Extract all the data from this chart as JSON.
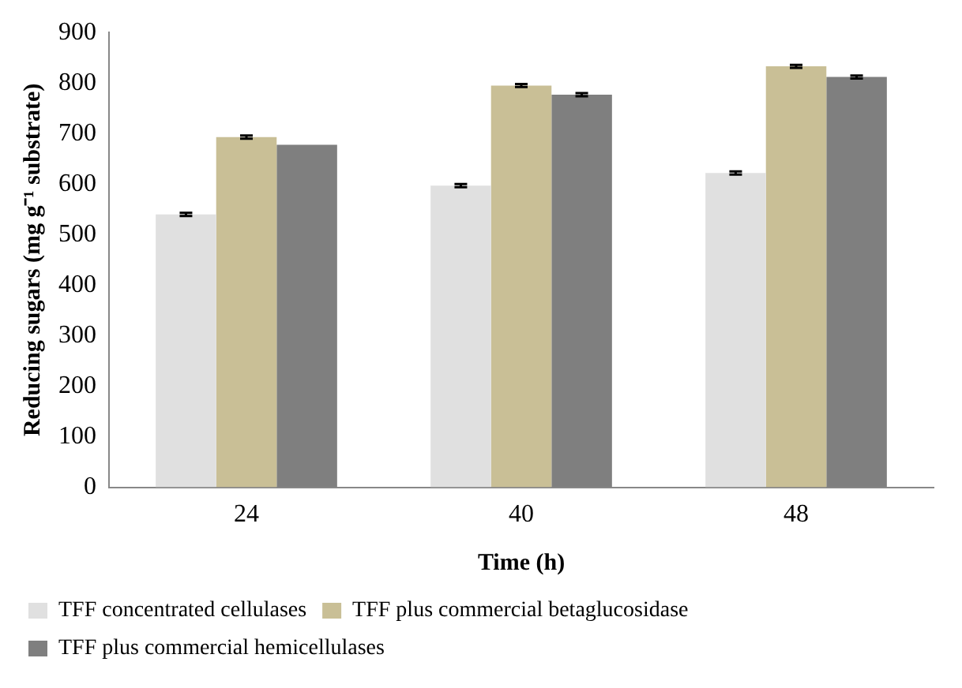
{
  "chart_data": {
    "type": "bar",
    "xlabel": "Time (h)",
    "ylabel": "Reducing sugars (mg g⁻¹ substrate)",
    "categories": [
      "24",
      "40",
      "48"
    ],
    "series": [
      {
        "name": "TFF concentrated cellulases",
        "color": "#e0e0e0",
        "values": [
          540,
          597,
          622
        ],
        "errors": [
          3,
          3,
          3
        ]
      },
      {
        "name": "TFF plus commercial betaglucosidase",
        "color": "#c9bf96",
        "values": [
          693,
          795,
          833
        ],
        "errors": [
          3,
          3,
          3
        ]
      },
      {
        "name": "TFF plus commercial hemicellulases",
        "color": "#7f7f7f",
        "values": [
          678,
          777,
          812
        ],
        "errors": [
          null,
          3,
          3
        ]
      }
    ],
    "ylim": [
      0,
      900
    ],
    "yticks": [
      0,
      100,
      200,
      300,
      400,
      500,
      600,
      700,
      800,
      900
    ],
    "grid": false,
    "legend": "bottom"
  }
}
